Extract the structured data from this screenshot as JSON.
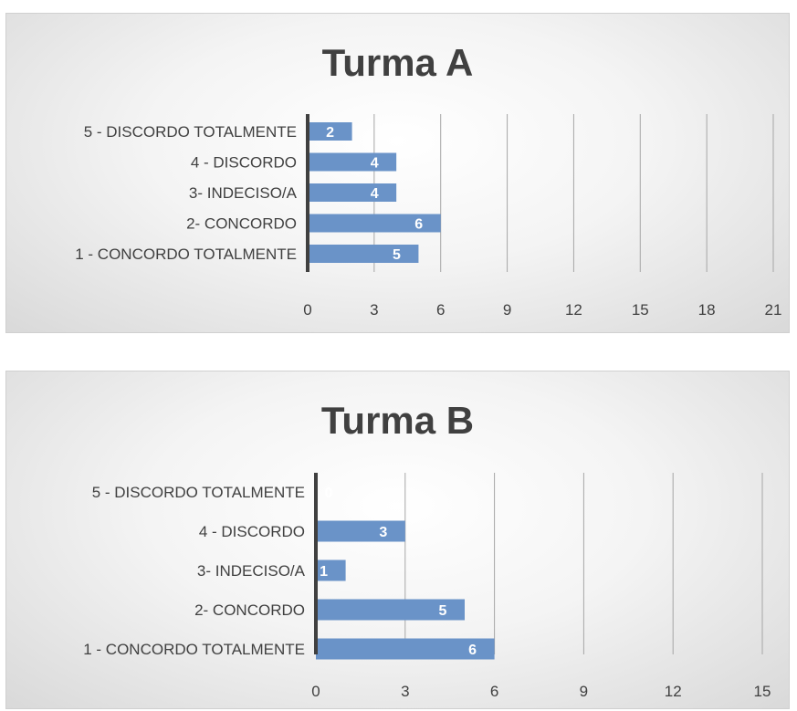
{
  "chart_data": [
    {
      "type": "bar",
      "orientation": "horizontal",
      "title": "Turma A",
      "categories": [
        "5 - DISCORDO TOTALMENTE",
        "4 - DISCORDO",
        "3- INDECISO/A",
        "2- CONCORDO",
        "1 - CONCORDO TOTALMENTE"
      ],
      "values": [
        2,
        4,
        4,
        6,
        5
      ],
      "xlim": [
        0,
        21
      ],
      "xticks": [
        "0",
        "3",
        "6",
        "9",
        "12",
        "15",
        "18",
        "21"
      ],
      "grid": true,
      "data_labels": true
    },
    {
      "type": "bar",
      "orientation": "horizontal",
      "title": "Turma B",
      "categories": [
        "5 - DISCORDO TOTALMENTE",
        "4 - DISCORDO",
        "3- INDECISO/A",
        "2- CONCORDO",
        "1 - CONCORDO TOTALMENTE"
      ],
      "values": [
        0,
        3,
        1,
        5,
        6
      ],
      "xlim": [
        0,
        15
      ],
      "xticks": [
        "0",
        "3",
        "6",
        "9",
        "12",
        "15"
      ],
      "grid": true,
      "data_labels": true
    }
  ],
  "colors": {
    "bar": "#6a93c8",
    "label": "#ffffff",
    "text": "#404040",
    "grid": "#a6a6a6"
  }
}
